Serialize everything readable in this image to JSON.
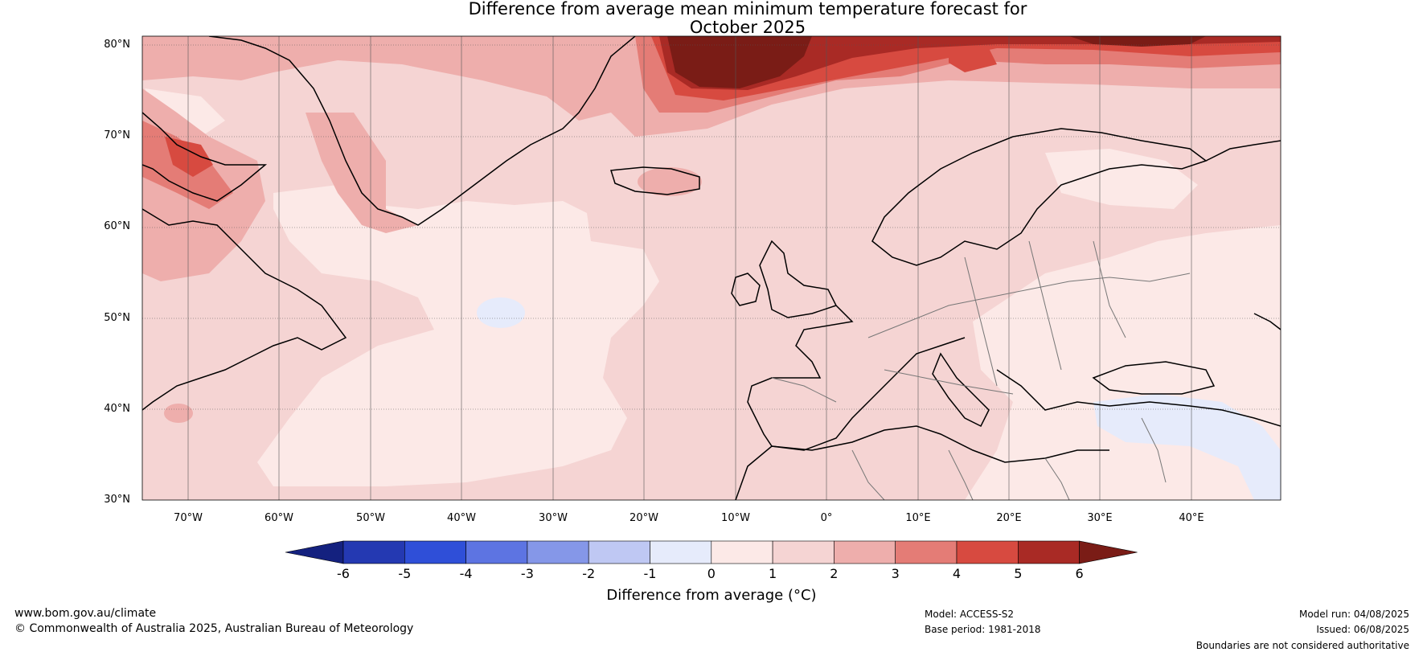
{
  "title_line1": "Difference from average mean minimum temperature forecast for",
  "title_line2": "October 2025",
  "lat_labels": [
    "80°N",
    "70°N",
    "60°N",
    "50°N",
    "40°N",
    "30°N"
  ],
  "lon_labels": [
    "70°W",
    "60°W",
    "50°W",
    "40°W",
    "30°W",
    "20°W",
    "10°W",
    "0°",
    "10°E",
    "20°E",
    "30°E",
    "40°E"
  ],
  "colorbar": {
    "ticks": [
      "-6",
      "-5",
      "-4",
      "-3",
      "-2",
      "-1",
      "0",
      "1",
      "2",
      "3",
      "4",
      "5",
      "6"
    ],
    "colors": [
      "#14217f",
      "#2439b2",
      "#2f4fd8",
      "#5d74e2",
      "#8597e8",
      "#bfc8f3",
      "#e6ebfb",
      "#fce9e7",
      "#f5d4d3",
      "#eeaeac",
      "#e47c76",
      "#d74a40",
      "#a92a25",
      "#7a1c16"
    ],
    "label": "Difference from average (°C)"
  },
  "footer": {
    "website": "www.bom.gov.au/climate",
    "copyright": "© Commonwealth of Australia 2025, Australian Bureau of Meteorology",
    "model": "Model: ACCESS-S2",
    "base_period": "Base period: 1981-2018",
    "model_run": "Model run: 04/08/2025",
    "issued": "Issued: 06/08/2025",
    "disclaimer": "Boundaries are not considered authoritative"
  }
}
